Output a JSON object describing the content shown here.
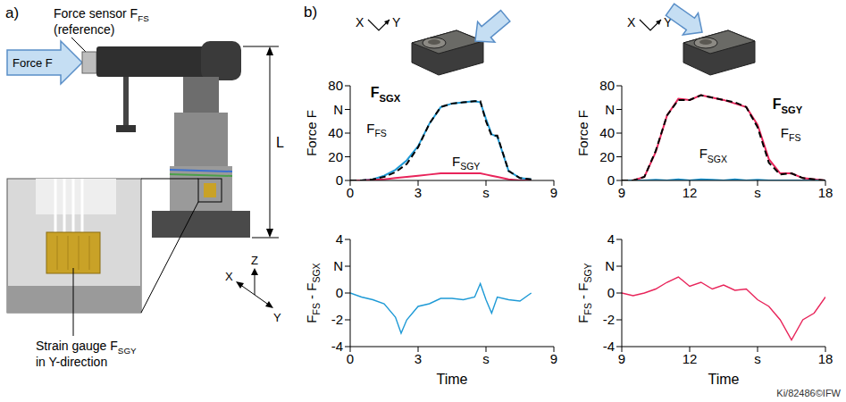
{
  "panel_a": {
    "label": "a)",
    "force_sensor": [
      "Force sensor FFS",
      "(reference)"
    ],
    "force": "Force F",
    "length": "L",
    "strain_gauge": [
      "Strain gauge FSGY",
      "in Y-direction"
    ],
    "axes": [
      "X",
      "Y",
      "Z"
    ]
  },
  "panel_b": {
    "label": "b)",
    "icon_axes": [
      [
        "X",
        "Y"
      ],
      [
        "X",
        "Y"
      ]
    ]
  },
  "credit": "Ki/82486©IFW",
  "chart_data": [
    {
      "type": "line",
      "y_label": "Force F",
      "x": [
        0,
        0.5,
        1,
        1.5,
        2,
        2.5,
        3,
        3.5,
        4,
        4.5,
        5,
        5.5,
        5.75,
        6,
        6.25,
        6.5,
        7,
        7.5,
        8
      ],
      "xlim": [
        0,
        9
      ],
      "xticks": [
        0,
        3,
        {
          "value": 6,
          "label": "s"
        },
        9
      ],
      "ylim": [
        0,
        80
      ],
      "yticks": [
        0,
        20,
        40,
        {
          "value": 60,
          "label": "N"
        },
        80
      ],
      "series": [
        {
          "name": "FSGX",
          "color": "#1e9ad6",
          "line_style": "solid",
          "values": [
            0,
            0,
            1,
            4,
            9,
            17,
            29,
            48,
            62,
            65,
            66,
            67,
            66,
            52,
            39,
            37,
            8,
            2,
            1
          ]
        },
        {
          "name": "FFS",
          "color": "#000000",
          "line_style": "dashed",
          "values": [
            0,
            0,
            1,
            3,
            7,
            14,
            28,
            48,
            62,
            65,
            66,
            67,
            67,
            50,
            38,
            38,
            8,
            2,
            1
          ]
        },
        {
          "name": "FSGY",
          "color": "#e8245a",
          "line_style": "solid",
          "values": [
            0,
            0,
            0.5,
            1,
            2,
            3,
            4,
            5,
            6,
            6,
            6,
            6,
            6,
            5,
            4,
            3,
            1,
            0,
            0
          ]
        }
      ]
    },
    {
      "type": "line",
      "y_label": "Force F",
      "x": [
        9,
        9.5,
        10,
        10.5,
        11,
        11.5,
        12,
        12.5,
        13,
        13.5,
        14,
        14.5,
        15,
        15.5,
        16,
        16.5,
        17,
        17.5,
        18
      ],
      "xlim": [
        9,
        18
      ],
      "xticks": [
        9,
        12,
        {
          "value": 15,
          "label": "s"
        },
        18
      ],
      "ylim": [
        0,
        80
      ],
      "yticks": [
        0,
        20,
        40,
        {
          "value": 60,
          "label": "N"
        },
        80
      ],
      "series": [
        {
          "name": "FSGY",
          "color": "#e8245a",
          "line_style": "solid",
          "values": [
            0,
            0,
            3,
            24,
            55,
            69,
            68,
            72,
            70,
            68,
            65,
            62,
            47,
            18,
            6,
            6,
            2,
            1,
            0
          ]
        },
        {
          "name": "FFS",
          "color": "#000000",
          "line_style": "dashed",
          "values": [
            0,
            0,
            3,
            25,
            55,
            68,
            68,
            72,
            70,
            68,
            66,
            62,
            45,
            15,
            5,
            6,
            2,
            1,
            0
          ]
        },
        {
          "name": "FSGX",
          "color": "#1e9ad6",
          "line_style": "solid",
          "values": [
            0,
            0,
            0,
            0.5,
            0,
            1,
            0,
            1,
            0.5,
            0,
            1,
            0,
            0.5,
            0,
            0,
            0,
            0,
            0,
            0
          ]
        }
      ]
    },
    {
      "type": "line",
      "y_label": "FFS - FSGX",
      "x_label": "Time",
      "x": [
        0,
        0.5,
        1,
        1.5,
        2,
        2.25,
        2.5,
        3,
        3.5,
        4,
        4.5,
        5,
        5.5,
        5.75,
        6,
        6.25,
        6.5,
        7,
        7.5,
        8
      ],
      "xlim": [
        0,
        9
      ],
      "xticks": [
        0,
        3,
        {
          "value": 6,
          "label": "s"
        },
        9
      ],
      "ylim": [
        -4,
        4
      ],
      "yticks": [
        -4,
        -2,
        0,
        {
          "value": 2,
          "label": "N"
        },
        4
      ],
      "color": "#1e9ad6",
      "values": [
        0,
        -0.3,
        -0.5,
        -0.8,
        -1.8,
        -3,
        -2,
        -1,
        -0.8,
        -0.4,
        -0.4,
        -0.5,
        -0.3,
        0.7,
        -0.5,
        -1.5,
        -0.3,
        -0.5,
        -0.6,
        0
      ]
    },
    {
      "type": "line",
      "y_label": "FFS - FSGY",
      "x_label": "Time",
      "x": [
        9,
        9.5,
        10,
        10.5,
        11,
        11.5,
        12,
        12.5,
        13,
        13.5,
        14,
        14.5,
        15,
        15.5,
        16,
        16.5,
        17,
        17.5,
        18
      ],
      "xlim": [
        9,
        18
      ],
      "xticks": [
        9,
        12,
        {
          "value": 15,
          "label": "s"
        },
        18
      ],
      "ylim": [
        -4,
        4
      ],
      "yticks": [
        -4,
        -2,
        0,
        {
          "value": 2,
          "label": "N"
        },
        4
      ],
      "color": "#e8245a",
      "values": [
        0,
        -0.2,
        0,
        0.3,
        0.8,
        1.2,
        0.5,
        0.8,
        0.3,
        0.6,
        0.2,
        0.3,
        -0.5,
        -1,
        -2,
        -3.5,
        -2,
        -1.5,
        -0.3
      ]
    }
  ]
}
